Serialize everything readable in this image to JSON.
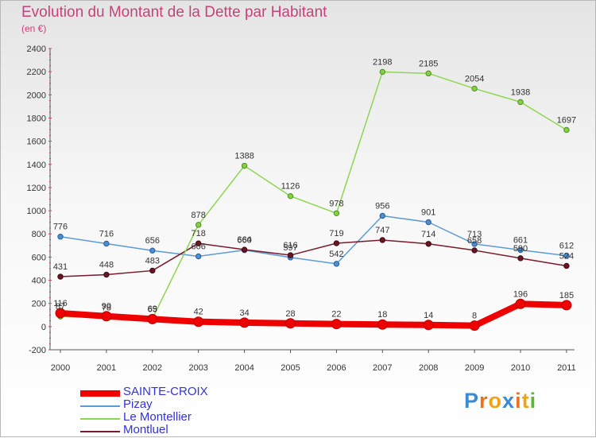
{
  "header": {
    "title": "Evolution du Montant de la Dette par Habitant",
    "subtitle": "(en €)"
  },
  "logo": {
    "text": "Proxiti",
    "colors": [
      "#3a8ad8",
      "#e8721e",
      "#f2a21a",
      "#3a8ad8",
      "#e8721e",
      "#f2a21a",
      "#5cb82e"
    ]
  },
  "chart_data": {
    "type": "line",
    "title": "Evolution du Montant de la Dette par Habitant",
    "subtitle": "(en €)",
    "x": [
      "2000",
      "2001",
      "2002",
      "2003",
      "2004",
      "2005",
      "2006",
      "2007",
      "2008",
      "2009",
      "2010",
      "2011"
    ],
    "ylim": [
      -200,
      2400
    ],
    "yticks": [
      -200,
      0,
      200,
      400,
      600,
      800,
      1000,
      1200,
      1400,
      1600,
      1800,
      2000,
      2200,
      2400
    ],
    "grid": false,
    "legend_position": "bottom-left",
    "series": [
      {
        "name": "SAINTE-CROIX",
        "color": "#ee0000",
        "values": [
          116,
          90,
          65,
          42,
          34,
          28,
          22,
          18,
          14,
          8,
          196,
          185
        ]
      },
      {
        "name": "Pizay",
        "color": "#5b9bd5",
        "values": [
          776,
          716,
          656,
          606,
          660,
          597,
          542,
          956,
          901,
          713,
          661,
          612
        ]
      },
      {
        "name": "Le Montellier",
        "color": "#8ed651",
        "values": [
          87,
          78,
          69,
          878,
          1388,
          1126,
          978,
          2198,
          2185,
          2054,
          1938,
          1697
        ]
      },
      {
        "name": "Montluel",
        "color": "#7a1a2a",
        "values": [
          431,
          448,
          483,
          718,
          664,
          616,
          719,
          747,
          714,
          658,
          590,
          524
        ]
      }
    ]
  }
}
